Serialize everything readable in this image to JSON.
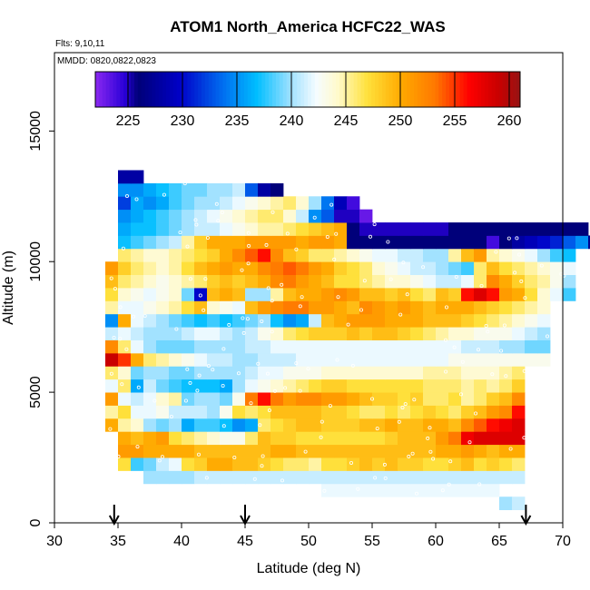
{
  "chart_data": {
    "type": "heatmap",
    "title": "ATOM1 North_America HCFC22_WAS",
    "flights_label": "Flts: 9,10,11",
    "dates_label": "MMDD: 0820,0822,0823",
    "xlabel": "Latitude (deg N)",
    "ylabel": "Altitude (m)",
    "xlim": [
      30,
      70
    ],
    "ylim": [
      0,
      18000
    ],
    "x_ticks": [
      30,
      35,
      40,
      45,
      50,
      55,
      60,
      65,
      70
    ],
    "y_ticks": [
      0,
      5000,
      10000,
      15000
    ],
    "grid": false,
    "colorbar": {
      "range": [
        222,
        261
      ],
      "ticks": [
        225,
        230,
        235,
        240,
        245,
        250,
        255,
        260
      ],
      "placement": "top"
    },
    "arrows_latitude": [
      34.7,
      45,
      67.1
    ],
    "cell_size": {
      "lat": 1,
      "alt": 500
    },
    "rows": [
      {
        "alt": 500,
        "lat0": 65,
        "values": [
          240,
          241
        ]
      },
      {
        "alt": 1000,
        "lat0": 51,
        "values": [
          242,
          242,
          242,
          242,
          242,
          242,
          242,
          242,
          242,
          242,
          242,
          242,
          242,
          242
        ]
      },
      {
        "alt": 1500,
        "lat0": 37,
        "values": [
          240,
          240,
          240,
          240,
          241,
          241,
          241,
          241,
          241,
          241,
          241,
          241,
          241,
          241,
          241,
          241,
          241,
          241,
          241,
          241,
          241,
          241,
          241,
          241,
          241,
          241,
          241,
          241,
          241,
          241
        ]
      },
      {
        "alt": 2000,
        "lat0": 35,
        "values": [
          247,
          238,
          239,
          241,
          242,
          247,
          248,
          250,
          250,
          249,
          249,
          248,
          247,
          246,
          246,
          245,
          247,
          247,
          248,
          249,
          248,
          249,
          248,
          248,
          247,
          247,
          248,
          249,
          247,
          248,
          247,
          246
        ]
      },
      {
        "alt": 2500,
        "lat0": 35,
        "values": [
          251,
          251,
          250,
          250,
          250,
          250,
          249,
          249,
          249,
          249,
          249,
          249,
          250,
          250,
          249,
          249,
          249,
          249,
          249,
          249,
          249,
          249,
          249,
          249,
          249,
          250,
          250,
          251,
          250,
          249,
          250,
          250
        ]
      },
      {
        "alt": 3000,
        "lat0": 35,
        "values": [
          250,
          249,
          250,
          251,
          247,
          246,
          245,
          244,
          243,
          243,
          246,
          249,
          248,
          248,
          247,
          247,
          247,
          247,
          247,
          247,
          247,
          248,
          249,
          249,
          249,
          251,
          253,
          257,
          258,
          258,
          258,
          258
        ]
      },
      {
        "alt": 3500,
        "lat0": 34,
        "values": [
          250,
          245,
          244,
          240,
          239,
          240,
          236,
          238,
          238,
          237,
          235,
          236,
          246,
          247,
          248,
          249,
          249,
          248,
          248,
          248,
          249,
          249,
          250,
          249,
          249,
          250,
          250,
          249,
          252,
          254,
          256,
          257,
          258
        ]
      },
      {
        "alt": 4000,
        "lat0": 34,
        "values": [
          245,
          247,
          242,
          242,
          243,
          241,
          241,
          241,
          240,
          243,
          247,
          246,
          247,
          249,
          249,
          249,
          249,
          248,
          248,
          247,
          246,
          246,
          247,
          246,
          247,
          248,
          247,
          246,
          248,
          249,
          251,
          252,
          256
        ]
      },
      {
        "alt": 4500,
        "lat0": 34,
        "values": [
          251,
          242,
          241,
          242,
          244,
          245,
          239,
          240,
          240,
          239,
          243,
          253,
          256,
          253,
          251,
          252,
          252,
          251,
          251,
          250,
          249,
          248,
          248,
          247,
          248,
          246,
          246,
          247,
          245,
          246,
          248,
          249,
          252
        ]
      },
      {
        "alt": 5000,
        "lat0": 34,
        "values": [
          242,
          246,
          236,
          241,
          239,
          238,
          237,
          237,
          237,
          236,
          240,
          242,
          243,
          244,
          245,
          246,
          247,
          248,
          248,
          247,
          247,
          247,
          247,
          247,
          247,
          246,
          246,
          246,
          245,
          246,
          245,
          246,
          248
        ]
      },
      {
        "alt": 5500,
        "lat0": 34,
        "values": [
          246,
          244,
          239,
          240,
          240,
          239,
          239,
          240,
          240,
          240,
          240,
          241,
          242,
          242,
          243,
          243,
          243,
          244,
          244,
          244,
          244,
          244,
          244,
          244,
          244,
          245,
          245,
          245,
          244,
          244,
          244,
          245,
          246
        ]
      },
      {
        "alt": 6000,
        "lat0": 34,
        "values": [
          259,
          255,
          250,
          246,
          245,
          244,
          243,
          242,
          241,
          241,
          240,
          240,
          241,
          241,
          241,
          242,
          242,
          242,
          242,
          242,
          242,
          242,
          242,
          242,
          242,
          242,
          242,
          243,
          243,
          243,
          243,
          243,
          243,
          243,
          243
        ]
      },
      {
        "alt": 6500,
        "lat0": 34,
        "values": [
          252,
          246,
          242,
          240,
          239,
          239,
          239,
          240,
          240,
          240,
          240,
          241,
          241,
          242,
          242,
          242,
          242,
          242,
          242,
          242,
          242,
          242,
          242,
          242,
          242,
          242,
          242,
          242,
          241,
          241,
          241,
          240,
          240,
          239,
          239
        ]
      },
      {
        "alt": 7000,
        "lat0": 34,
        "values": [
          241,
          242,
          241,
          240,
          240,
          240,
          241,
          242,
          242,
          241,
          240,
          241,
          243,
          244,
          246,
          247,
          248,
          248,
          248,
          249,
          248,
          249,
          249,
          248,
          247,
          246,
          245,
          244,
          244,
          243,
          243,
          243,
          242,
          241,
          240
        ]
      },
      {
        "alt": 7500,
        "lat0": 34,
        "values": [
          235,
          250,
          242,
          241,
          240,
          239,
          238,
          237,
          238,
          237,
          238,
          239,
          240,
          237,
          235,
          236,
          241,
          249,
          250,
          251,
          251,
          251,
          250,
          250,
          250,
          249,
          249,
          249,
          248,
          247,
          246,
          245,
          244,
          243,
          242
        ]
      },
      {
        "alt": 8000,
        "lat0": 34,
        "values": [
          245,
          242,
          242,
          243,
          244,
          245,
          247,
          249,
          244,
          243,
          242,
          249,
          251,
          252,
          253,
          253,
          251,
          251,
          250,
          249,
          252,
          251,
          250,
          251,
          250,
          249,
          250,
          250,
          250,
          249,
          248,
          247,
          246,
          245,
          244
        ]
      },
      {
        "alt": 8500,
        "lat0": 34,
        "values": [
          247,
          244,
          243,
          242,
          243,
          244,
          239,
          230,
          249,
          250,
          249,
          240,
          240,
          245,
          249,
          250,
          250,
          251,
          252,
          251,
          249,
          249,
          248,
          249,
          247,
          246,
          249,
          248,
          256,
          258,
          256,
          251,
          250,
          247,
          244,
          242,
          238
        ]
      },
      {
        "alt": 9000,
        "lat0": 34,
        "values": [
          249,
          246,
          245,
          244,
          243,
          244,
          245,
          246,
          248,
          249,
          248,
          249,
          250,
          252,
          253,
          251,
          250,
          249,
          247,
          247,
          246,
          245,
          244,
          244,
          243,
          242,
          241,
          241,
          242,
          246,
          252,
          250,
          248,
          246,
          245,
          243,
          240
        ]
      },
      {
        "alt": 9500,
        "lat0": 34,
        "values": [
          251,
          248,
          246,
          245,
          244,
          245,
          247,
          249,
          250,
          251,
          250,
          250,
          252,
          253,
          254,
          253,
          251,
          250,
          248,
          247,
          246,
          244,
          243,
          242,
          241,
          241,
          240,
          239,
          238,
          246,
          249,
          247,
          246,
          245,
          244,
          243,
          242
        ]
      },
      {
        "alt": 10000,
        "lat0": 35,
        "values": [
          246,
          245,
          244,
          244,
          245,
          246,
          247,
          248,
          250,
          252,
          254,
          256,
          252,
          249,
          248,
          246,
          246,
          245,
          244,
          243,
          242,
          242,
          241,
          241,
          240,
          240,
          245,
          249,
          251,
          245,
          244,
          243,
          242,
          240,
          238,
          237
        ]
      },
      {
        "alt": 10500,
        "lat0": 35,
        "values": [
          237,
          238,
          239,
          240,
          241,
          245,
          248,
          250,
          250,
          250,
          251,
          251,
          251,
          251,
          250,
          251,
          251,
          250,
          226,
          226,
          226,
          226,
          226,
          226,
          226,
          226,
          226,
          226,
          226,
          224,
          226,
          228,
          229,
          230,
          231,
          233,
          235,
          227
        ]
      },
      {
        "alt": 11000,
        "lat0": 35,
        "values": [
          236,
          237,
          237,
          238,
          239,
          240,
          241,
          241,
          242,
          243,
          244,
          245,
          245,
          246,
          247,
          248,
          249,
          250,
          226,
          225,
          225,
          225,
          225,
          225,
          225,
          225,
          226,
          226,
          226,
          226,
          226,
          226,
          226,
          226,
          226,
          226,
          226
        ]
      },
      {
        "alt": 11500,
        "lat0": 35,
        "values": [
          235,
          236,
          237,
          238,
          239,
          240,
          241,
          242,
          243,
          244,
          245,
          246,
          246,
          244,
          241,
          235,
          233,
          225,
          225,
          223
        ]
      },
      {
        "alt": 12000,
        "lat0": 35,
        "values": [
          232,
          236,
          235,
          236,
          238,
          239,
          240,
          240,
          241,
          242,
          243,
          244,
          245,
          246,
          244,
          240,
          234,
          229,
          224
        ]
      },
      {
        "alt": 12500,
        "lat0": 35,
        "values": [
          235,
          235,
          236,
          237,
          238,
          239,
          239,
          240,
          240,
          241,
          233,
          228,
          226
        ]
      },
      {
        "alt": 13000,
        "lat0": 35,
        "values": [
          228,
          228
        ]
      }
    ]
  }
}
